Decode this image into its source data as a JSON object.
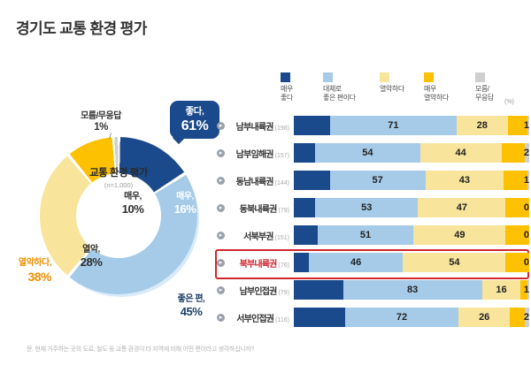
{
  "title": "경기도 교통 환경 평가",
  "footnote": "문. 현재 거주하는 곳의 도로, 철도 등 교통 환경이 타 지역에 비해 어떤 편이라고 생각하십니까?",
  "colors": {
    "navy": "#1b4a8c",
    "light_blue": "#a5cbe8",
    "light_yellow": "#f8e49b",
    "gold": "#fdc101",
    "gray": "#cfcfcf",
    "orange": "#f08f00",
    "highlight_red": "#d0262c"
  },
  "icons": {
    "row_bullet": "▸"
  },
  "chart_data": [
    {
      "type": "pie",
      "title": "교통 환경 평가",
      "subtitle": "(n=1,000)",
      "segments": [
        {
          "label": "매우,",
          "pct": "16%",
          "value": 16,
          "color_key": "navy",
          "group": "좋다"
        },
        {
          "label": "좋은 편,",
          "pct": "45%",
          "value": 45,
          "color_key": "light_blue",
          "group": "좋다"
        },
        {
          "label": "열악,",
          "pct": "28%",
          "value": 28,
          "color_key": "light_yellow",
          "group": "열악하다"
        },
        {
          "label": "매우,",
          "pct": "10%",
          "value": 10,
          "color_key": "gold",
          "group": "열악하다"
        },
        {
          "label": "모름/무응답",
          "pct": "1%",
          "value": 1,
          "color_key": "gray",
          "group": "모름/무응답"
        }
      ],
      "callouts": [
        {
          "label": "좋다,",
          "value": "61%"
        },
        {
          "label": "열악하다,",
          "value": "38%"
        },
        {
          "label": "모름/무응답",
          "value": "1%"
        }
      ]
    },
    {
      "type": "bar",
      "orientation": "horizontal-stacked",
      "unit": "(%)",
      "legend_position": "top",
      "legend": [
        {
          "line1": "매우",
          "line2": "좋다",
          "color_key": "navy"
        },
        {
          "line1": "대체로",
          "line2": "좋은 편이다",
          "color_key": "light_blue"
        },
        {
          "line1": "열악하다",
          "line2": "",
          "color_key": "light_yellow"
        },
        {
          "line1": "매우",
          "line2": "열악하다",
          "color_key": "gold"
        },
        {
          "line1": "모름/",
          "line2": "무응답",
          "color_key": "gray"
        }
      ],
      "segment_color_keys": [
        "navy",
        "light_blue",
        "light_yellow",
        "gold",
        "gray"
      ],
      "rows": [
        {
          "label": "남부내륙권",
          "n": "(198)",
          "good": 71,
          "poor": 28,
          "unknown": 1,
          "segments_est": [
            17,
            54,
            19,
            9,
            1
          ],
          "highlight": false
        },
        {
          "label": "남부임해권",
          "n": "(157)",
          "good": 54,
          "poor": 44,
          "unknown": 2,
          "segments_est": [
            10,
            44,
            33,
            11,
            2
          ],
          "highlight": false
        },
        {
          "label": "동남내륙권",
          "n": "(144)",
          "good": 57,
          "poor": 43,
          "unknown": 1,
          "segments_est": [
            17,
            40,
            32,
            11,
            1
          ],
          "highlight": false
        },
        {
          "label": "동북내륙권",
          "n": "(79)",
          "good": 53,
          "poor": 47,
          "unknown": 0,
          "segments_est": [
            10,
            43,
            36,
            11,
            0
          ],
          "highlight": false
        },
        {
          "label": "서북부권",
          "n": "(151)",
          "good": 51,
          "poor": 49,
          "unknown": 0,
          "segments_est": [
            11,
            40,
            38,
            11,
            0
          ],
          "highlight": false
        },
        {
          "label": "북부내륙권",
          "n": "(76)",
          "good": 46,
          "poor": 54,
          "unknown": 0,
          "segments_est": [
            7,
            39,
            43,
            11,
            0
          ],
          "highlight": true
        },
        {
          "label": "남부인접권",
          "n": "(79)",
          "good": 83,
          "poor": 16,
          "unknown": 1,
          "segments_est": [
            23,
            60,
            13,
            3,
            1
          ],
          "highlight": false
        },
        {
          "label": "서부인접권",
          "n": "(116)",
          "good": 72,
          "poor": 26,
          "unknown": 2,
          "segments_est": [
            24,
            48,
            19,
            7,
            2
          ],
          "highlight": false
        }
      ]
    }
  ]
}
